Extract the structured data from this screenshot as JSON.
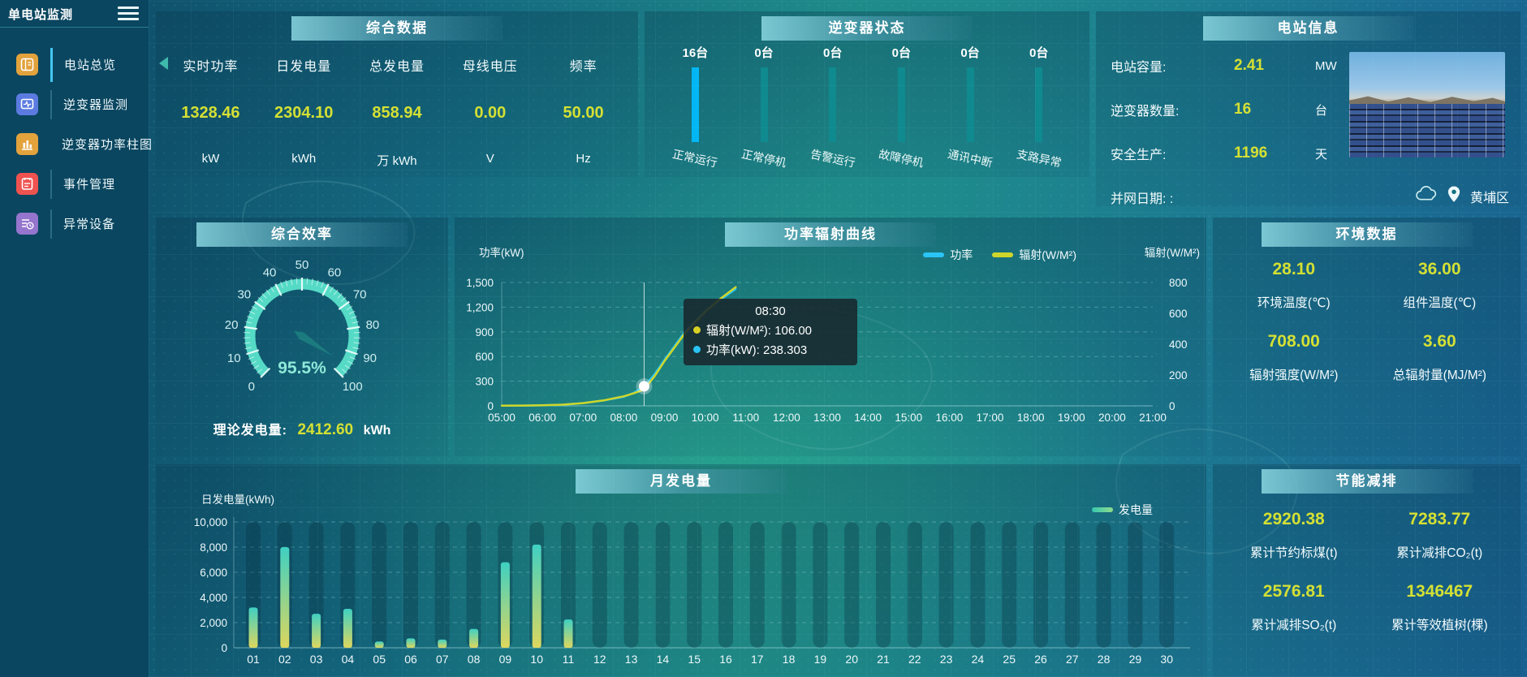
{
  "sidebar": {
    "title": "单电站监测",
    "items": [
      {
        "id": "station-overview",
        "label": "电站总览",
        "icon": "overview-icon",
        "color": "#e2a23c",
        "active": true
      },
      {
        "id": "inverter-monitor",
        "label": "逆变器监测",
        "icon": "monitor-icon",
        "color": "#5b7be0",
        "active": false
      },
      {
        "id": "inverter-power-bars",
        "label": "逆变器功率柱图",
        "icon": "bar-chart-icon",
        "color": "#e2a23c",
        "active": false
      },
      {
        "id": "event-management",
        "label": "事件管理",
        "icon": "event-icon",
        "color": "#ef5350",
        "active": false
      },
      {
        "id": "abnormal-devices",
        "label": "异常设备",
        "icon": "device-alert-icon",
        "color": "#9575cd",
        "active": false
      }
    ]
  },
  "panels": {
    "summary": {
      "title": "综合数据",
      "metrics": [
        {
          "label": "实时功率",
          "value": "1328.46",
          "unit": "kW"
        },
        {
          "label": "日发电量",
          "value": "2304.10",
          "unit": "kWh"
        },
        {
          "label": "总发电量",
          "value": "858.94",
          "unit": "万 kWh"
        },
        {
          "label": "母线电压",
          "value": "0.00",
          "unit": "V"
        },
        {
          "label": "频率",
          "value": "50.00",
          "unit": "Hz"
        }
      ]
    },
    "inverter_status": {
      "title": "逆变器状态",
      "bar_color": "#0f8a8f",
      "highlight_color": "#00b6f4",
      "items": [
        {
          "count": "16台",
          "label": "正常运行",
          "highlight": true
        },
        {
          "count": "0台",
          "label": "正常停机",
          "highlight": false
        },
        {
          "count": "0台",
          "label": "告警运行",
          "highlight": false
        },
        {
          "count": "0台",
          "label": "故障停机",
          "highlight": false
        },
        {
          "count": "0台",
          "label": "通讯中断",
          "highlight": false
        },
        {
          "count": "0台",
          "label": "支路异常",
          "highlight": false
        }
      ]
    },
    "station_info": {
      "title": "电站信息",
      "rows": [
        {
          "label": "电站容量:",
          "value": "2.41",
          "unit": "MW"
        },
        {
          "label": "逆变器数量:",
          "value": "16",
          "unit": "台"
        },
        {
          "label": "安全生产:",
          "value": "1196",
          "unit": "天"
        },
        {
          "label": "并网日期: :",
          "value": "",
          "unit": ""
        }
      ],
      "location": "黄埔区"
    },
    "efficiency": {
      "footer_label": "理论发电量:",
      "footer_value": "2412.60",
      "footer_unit": "kWh"
    },
    "environment": {
      "title": "环境数据",
      "metrics": [
        {
          "value": "28.10",
          "label": "环境温度(℃)"
        },
        {
          "value": "36.00",
          "label": "组件温度(℃)"
        },
        {
          "value": "708.00",
          "label": "辐射强度(W/M²)"
        },
        {
          "value": "3.60",
          "label": "总辐射量(MJ/M²)"
        }
      ]
    },
    "energy_saving": {
      "title": "节能减排",
      "metrics": [
        {
          "value": "2920.38",
          "label": "累计节约标煤(t)"
        },
        {
          "value": "7283.77",
          "label": "累计减排CO₂(t)"
        },
        {
          "value": "2576.81",
          "label": "累计减排SO₂(t)"
        },
        {
          "value": "1346467",
          "label": "累计等效植树(棵)"
        }
      ]
    }
  },
  "chart_data": [
    {
      "type": "line",
      "title": "功率辐射曲线",
      "ylabel_left": "功率(kW)",
      "ylim_left": [
        0,
        1500
      ],
      "yticks_left": [
        "0",
        "300",
        "600",
        "900",
        "1,200",
        "1,500"
      ],
      "ylabel_right": "辐射(W/M²)",
      "ylim_right": [
        0,
        800
      ],
      "yticks_right": [
        "0",
        "200",
        "400",
        "600",
        "800"
      ],
      "x_ticks": [
        "05:00",
        "06:00",
        "07:00",
        "08:00",
        "09:00",
        "10:00",
        "11:00",
        "12:00",
        "13:00",
        "14:00",
        "15:00",
        "16:00",
        "17:00",
        "18:00",
        "19:00",
        "20:00",
        "21:00"
      ],
      "legend": [
        "功率",
        "辐射(W/M²)"
      ],
      "series": [
        {
          "name": "功率",
          "axis": "left",
          "color": "#29c4f5",
          "points": [
            [
              5,
              2
            ],
            [
              5.5,
              3
            ],
            [
              6,
              6
            ],
            [
              6.5,
              14
            ],
            [
              7,
              35
            ],
            [
              7.5,
              65
            ],
            [
              8,
              110
            ],
            [
              8.25,
              160
            ],
            [
              8.5,
              238.3
            ],
            [
              8.75,
              380
            ],
            [
              9,
              560
            ],
            [
              9.5,
              900
            ],
            [
              10,
              1150
            ],
            [
              10.4,
              1300
            ],
            [
              10.75,
              1420
            ]
          ]
        },
        {
          "name": "辐射(W/M²)",
          "axis": "right",
          "color": "#cfd628",
          "points": [
            [
              5,
              1
            ],
            [
              5.5,
              2
            ],
            [
              6,
              4
            ],
            [
              6.5,
              8
            ],
            [
              7,
              18
            ],
            [
              7.5,
              35
            ],
            [
              8,
              62
            ],
            [
              8.25,
              82
            ],
            [
              8.5,
              106
            ],
            [
              8.75,
              190
            ],
            [
              9,
              290
            ],
            [
              9.5,
              470
            ],
            [
              10,
              610
            ],
            [
              10.4,
              700
            ],
            [
              10.75,
              770
            ]
          ]
        }
      ],
      "tooltip": {
        "time": "08:30",
        "x": 8.5,
        "marker_value": 238.303,
        "items": [
          {
            "dot": "#d8d123",
            "text": "辐射(W/M²): 106.00"
          },
          {
            "dot": "#29c4f5",
            "text": "功率(kW): 238.303"
          }
        ]
      }
    },
    {
      "type": "bar",
      "title": "月发电量",
      "ylabel": "日发电量(kWh)",
      "ylim": [
        0,
        10000
      ],
      "yticks": [
        "0",
        "2,000",
        "4,000",
        "6,000",
        "8,000",
        "10,000"
      ],
      "legend": [
        "发电量"
      ],
      "categories": [
        "01",
        "02",
        "03",
        "04",
        "05",
        "06",
        "07",
        "08",
        "09",
        "10",
        "11",
        "12",
        "13",
        "14",
        "15",
        "16",
        "17",
        "18",
        "19",
        "20",
        "21",
        "22",
        "23",
        "24",
        "25",
        "26",
        "27",
        "28",
        "29",
        "30"
      ],
      "values": [
        3200,
        8000,
        2700,
        3100,
        500,
        750,
        650,
        1500,
        6800,
        8200,
        2250,
        0,
        0,
        0,
        0,
        0,
        0,
        0,
        0,
        0,
        0,
        0,
        0,
        0,
        0,
        0,
        0,
        0,
        0,
        0
      ]
    },
    {
      "type": "gauge",
      "title": "综合效率",
      "value": 95.5,
      "min": 0,
      "max": 100,
      "display": "95.5%",
      "tick_labels": [
        "0",
        "10",
        "20",
        "30",
        "40",
        "50",
        "60",
        "70",
        "80",
        "90",
        "100"
      ]
    }
  ],
  "colors": {
    "value_yellow": "#d4e033",
    "power_line": "#29c4f5",
    "radiation_line": "#cfd628",
    "bar_top": "#3fd0c2",
    "bar_bottom": "#ddd75e"
  }
}
